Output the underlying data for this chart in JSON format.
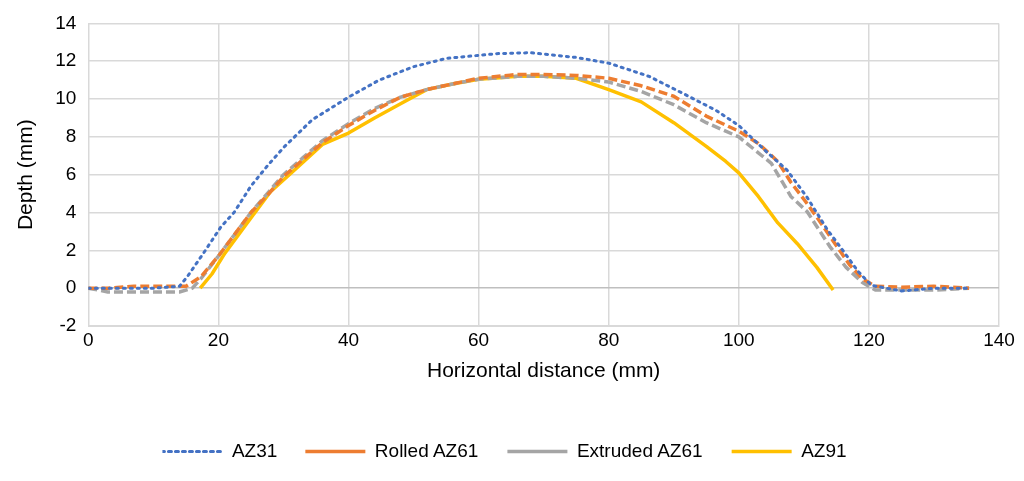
{
  "chart_data": {
    "type": "line",
    "xlabel": "Horizontal distance (mm)",
    "ylabel": "Depth (mm)",
    "xlim": [
      0,
      140
    ],
    "xticks": [
      0,
      20,
      40,
      60,
      80,
      100,
      120,
      140
    ],
    "ylim": [
      -2,
      14
    ],
    "yticks": [
      -2,
      0,
      2,
      4,
      6,
      8,
      10,
      12,
      14
    ],
    "grid": true,
    "legend": "bottom",
    "marker": "none",
    "series": [
      {
        "name": "AZ31",
        "color": "#4472c4",
        "line_style": "dotted",
        "x": [
          0,
          5,
          10,
          14,
          15.2,
          17.8,
          20.4,
          22.4,
          25,
          27.6,
          30.2,
          34.4,
          40,
          44.7,
          49.9,
          55,
          62.8,
          68,
          75,
          80,
          86.2,
          91.4,
          96.5,
          100,
          104.3,
          107.4,
          110.5,
          113.6,
          116.2,
          118.3,
          120.4,
          125,
          130,
          135.4
        ],
        "values": [
          0,
          0,
          0,
          0.1,
          0.6,
          1.9,
          3.25,
          4,
          5.4,
          6.5,
          7.5,
          8.9,
          10.1,
          11,
          11.7,
          12.15,
          12.4,
          12.45,
          12.2,
          11.9,
          11.2,
          10.3,
          9.4,
          8.6,
          7.2,
          6.25,
          4.8,
          3.1,
          1.9,
          0.9,
          0.15,
          -0.15,
          0,
          0
        ]
      },
      {
        "name": "Rolled AZ61",
        "color": "#ed7d31",
        "line_style": "dashed",
        "x": [
          0,
          3,
          7,
          12,
          15,
          17.3,
          20,
          22.4,
          25,
          28,
          30,
          33,
          36,
          40,
          44,
          48,
          52,
          56,
          60,
          66,
          70,
          75,
          80,
          85,
          90,
          95,
          100,
          103,
          106,
          108,
          110,
          112,
          114.5,
          117,
          119,
          121,
          125,
          130,
          135.4
        ],
        "values": [
          0,
          0,
          0.1,
          0.1,
          0.1,
          0.6,
          1.7,
          2.8,
          4,
          5.1,
          5.9,
          6.8,
          7.7,
          8.6,
          9.4,
          10.1,
          10.5,
          10.8,
          11.1,
          11.3,
          11.3,
          11.25,
          11.1,
          10.7,
          10.15,
          9.1,
          8.3,
          7.65,
          6.7,
          5.6,
          4.7,
          3.75,
          2.5,
          1.25,
          0.5,
          0.1,
          0.05,
          0.1,
          0
        ]
      },
      {
        "name": "Extruded AZ61",
        "color": "#a5a5a5",
        "line_style": "dashed",
        "x": [
          0,
          3,
          7,
          14,
          16,
          17.3,
          20,
          22.4,
          25,
          28,
          30,
          33,
          36,
          40,
          44,
          48,
          52,
          56,
          60,
          66,
          70,
          75,
          80,
          85,
          90,
          95,
          100,
          105,
          108,
          110.5,
          114,
          116.5,
          119,
          121,
          125,
          130,
          135.4
        ],
        "values": [
          0,
          -0.2,
          -0.2,
          -0.2,
          0,
          0.5,
          1.7,
          2.8,
          4,
          5.2,
          6,
          6.9,
          7.8,
          8.7,
          9.5,
          10.1,
          10.5,
          10.8,
          11.05,
          11.2,
          11.2,
          11.1,
          10.9,
          10.4,
          9.7,
          8.75,
          8,
          6.6,
          4.85,
          4.05,
          2.2,
          1.1,
          0.3,
          -0.1,
          -0.1,
          -0.1,
          0
        ]
      },
      {
        "name": "AZ91",
        "color": "#ffc000",
        "line_style": "solid",
        "x": [
          17.2,
          19,
          21,
          24,
          28,
          32,
          36,
          40,
          44,
          48,
          52,
          56,
          60,
          66,
          70,
          75,
          80,
          85,
          90,
          95,
          98,
          100,
          103,
          106,
          109,
          112,
          114.5
        ],
        "values": [
          0,
          0.75,
          1.85,
          3.25,
          5.1,
          6.35,
          7.6,
          8.2,
          9,
          9.75,
          10.5,
          10.8,
          11.05,
          11.2,
          11.2,
          11.1,
          10.5,
          9.85,
          8.75,
          7.5,
          6.7,
          6.1,
          4.85,
          3.45,
          2.35,
          1.1,
          -0.1
        ]
      }
    ]
  }
}
